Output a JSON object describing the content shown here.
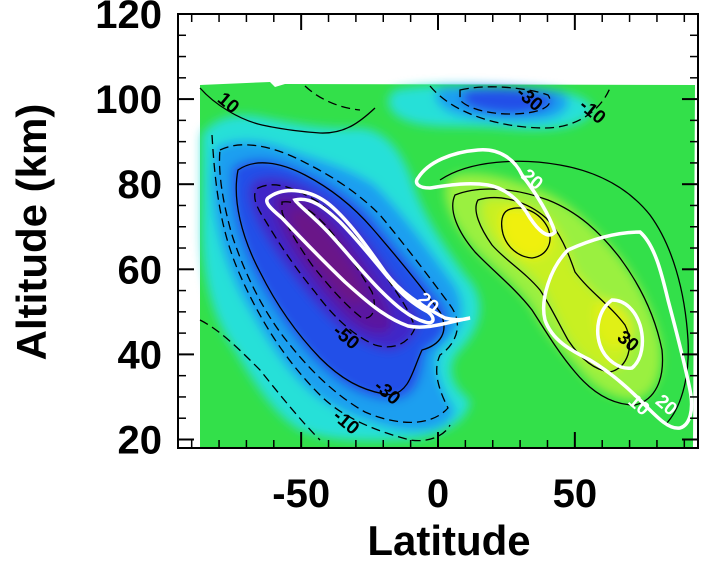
{
  "chart_data": {
    "type": "heatmap",
    "xlabel": "Latitude",
    "ylabel": "Altitude (km)",
    "xlim": [
      -95,
      95
    ],
    "ylim": [
      18,
      120
    ],
    "x_ticks": [
      -50,
      0,
      50
    ],
    "x_tick_labels": [
      "-50",
      "0",
      "50"
    ],
    "y_ticks": [
      20,
      40,
      60,
      80,
      100,
      120
    ],
    "y_tick_labels": [
      "20",
      "40",
      "60",
      "80",
      "100",
      "120"
    ],
    "data_extent": {
      "x": [
        -90,
        90
      ],
      "y": [
        18,
        105
      ]
    },
    "colors": {
      "background": "#33e04a",
      "cyan": "#28e0d8",
      "light_blue": "#1e9ff0",
      "blue": "#2050e8",
      "indigo": "#4028c8",
      "purple": "#5a18a0",
      "deep_purple": "#6a1888",
      "green_light": "#9af040",
      "yellow_green": "#c8f020",
      "yellow": "#f0f010"
    },
    "contour_labels": [
      {
        "text": "10",
        "x": -78,
        "y": 98,
        "color": "black"
      },
      {
        "text": "-30",
        "x": 32,
        "y": 99,
        "color": "black"
      },
      {
        "text": "-10",
        "x": 55,
        "y": 96,
        "color": "black"
      },
      {
        "text": "-50",
        "x": -35,
        "y": 43,
        "color": "black"
      },
      {
        "text": "-30",
        "x": -20,
        "y": 30,
        "color": "black"
      },
      {
        "text": "-10",
        "x": -35,
        "y": 23,
        "color": "black"
      },
      {
        "text": "30",
        "x": 68,
        "y": 42,
        "color": "black"
      },
      {
        "text": "20",
        "x": 33,
        "y": 80,
        "color": "white"
      },
      {
        "text": "20",
        "x": -5,
        "y": 51,
        "color": "white"
      },
      {
        "text": "10",
        "x": 72,
        "y": 27,
        "color": "white"
      },
      {
        "text": "20",
        "x": 82,
        "y": 27,
        "color": "white"
      }
    ],
    "grid": false,
    "legend": "none"
  }
}
